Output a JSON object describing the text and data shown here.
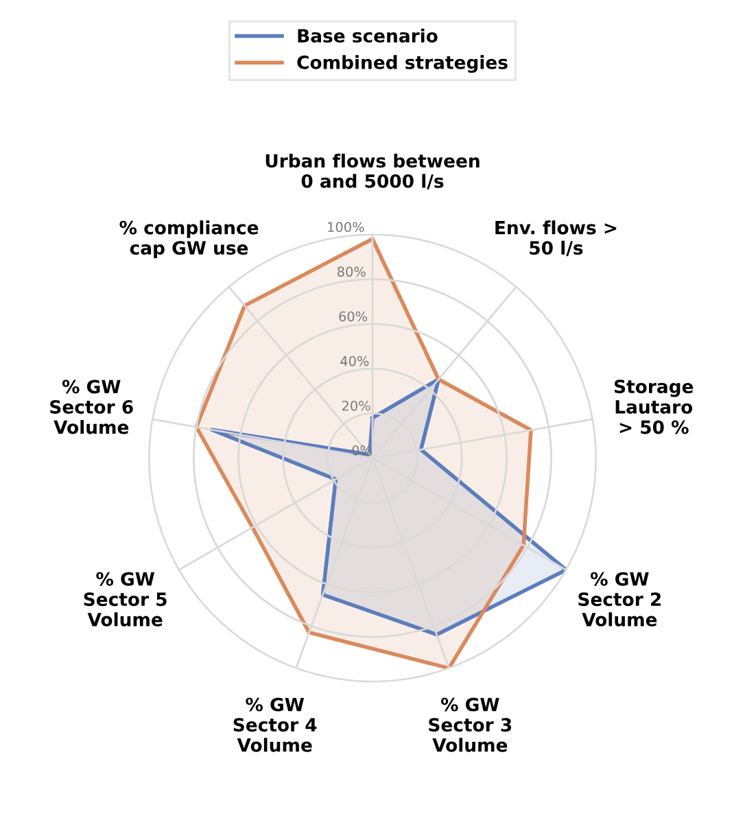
{
  "chart_data": {
    "type": "radar",
    "categories": [
      "Urban flows between\n0 and 5000 l/s",
      "Env. flows >\n50 l/s",
      "Storage\nLautaro\n> 50 %",
      "% GW\nSector 2\nVolume",
      "% GW\nSector 3\nVolume",
      "% GW\nSector 4\nVolume",
      "% GW\nSector 5\nVolume",
      "% GW\nSector 6\nVolume",
      "% compliance\ncap GW use"
    ],
    "series": [
      {
        "name": "Base scenario",
        "color": "#5b7dbd",
        "values": [
          18,
          46,
          22,
          100,
          84,
          65,
          19,
          73,
          2
        ]
      },
      {
        "name": "Combined strategies",
        "color": "#d98a5c",
        "values": [
          98,
          46,
          72,
          78,
          100,
          83,
          62,
          80,
          89
        ]
      }
    ],
    "ylim": [
      0,
      100
    ],
    "yticks": [
      {
        "value": 0,
        "label": "0%"
      },
      {
        "value": 20,
        "label": "20%"
      },
      {
        "value": 40,
        "label": "40%"
      },
      {
        "value": 60,
        "label": "60%"
      },
      {
        "value": 80,
        "label": "80%"
      },
      {
        "value": 100,
        "label": "100%"
      }
    ],
    "grid": true,
    "legend": "top",
    "marker": "none",
    "line_style": "solid"
  }
}
